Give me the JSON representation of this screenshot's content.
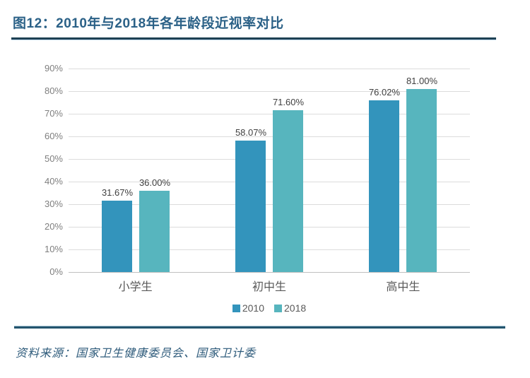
{
  "header": {
    "title": "图12：2010年与2018年各年龄段近视率对比"
  },
  "footer": {
    "source": "资料来源：国家卫生健康委员会、国家卫计委"
  },
  "colors": {
    "title_text": "#2B6187",
    "title_divider": "#1E4154",
    "bottom_divider": "#24556E",
    "grid": "#DCDCDC",
    "axis_text": "#7F7F7F",
    "category_text": "#595959",
    "value_text": "#404040",
    "series_2010": "#3394BC",
    "series_2018": "#57B5BE"
  },
  "chart_data": {
    "type": "bar",
    "title": "2010年与2018年各年龄段近视率对比",
    "categories": [
      "小学生",
      "初中生",
      "高中生"
    ],
    "series": [
      {
        "name": "2010",
        "values": [
          31.67,
          58.07,
          76.02
        ],
        "color": "#3394BC"
      },
      {
        "name": "2018",
        "values": [
          36.0,
          71.6,
          81.0
        ],
        "color": "#57B5BE"
      }
    ],
    "value_labels": [
      [
        "31.67%",
        "36.00%"
      ],
      [
        "58.07%",
        "71.60%"
      ],
      [
        "76.02%",
        "81.00%"
      ]
    ],
    "y_ticks": [
      "90%",
      "80%",
      "70%",
      "60%",
      "50%",
      "40%",
      "30%",
      "20%",
      "10%",
      "0%"
    ],
    "xlabel": "",
    "ylabel": "",
    "ylim": [
      0,
      90
    ],
    "grid": true,
    "legend_position": "bottom"
  }
}
